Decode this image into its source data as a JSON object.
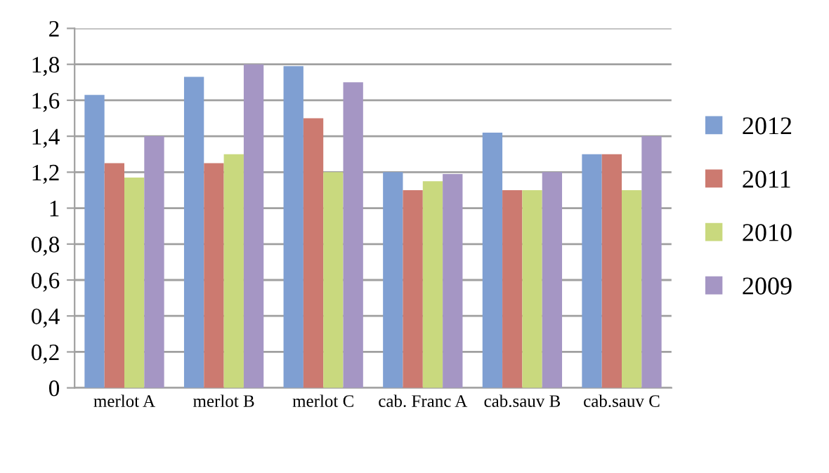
{
  "chart_data": {
    "type": "bar",
    "categories": [
      "merlot A",
      "merlot B",
      "merlot C",
      "cab. Franc A",
      "cab.sauv B",
      "cab.sauv C"
    ],
    "series": [
      {
        "name": "2012",
        "color": "#7f9fd2",
        "values": [
          1.63,
          1.73,
          1.79,
          1.2,
          1.42,
          1.3
        ]
      },
      {
        "name": "2011",
        "color": "#cc7a70",
        "values": [
          1.25,
          1.25,
          1.5,
          1.1,
          1.1,
          1.3
        ]
      },
      {
        "name": "2010",
        "color": "#c9d97e",
        "values": [
          1.17,
          1.3,
          1.2,
          1.15,
          1.1,
          1.1
        ]
      },
      {
        "name": "2009",
        "color": "#a596c4",
        "values": [
          1.4,
          1.8,
          1.7,
          1.19,
          1.2,
          1.4
        ]
      }
    ],
    "ylim": [
      0,
      2
    ],
    "yticks": [
      0,
      {
        "value": 0.2,
        "label": "0,2"
      },
      {
        "value": 0.4,
        "label": "0,4"
      },
      {
        "value": 0.6,
        "label": "0,6"
      },
      {
        "value": 0.8,
        "label": "0,8"
      },
      1,
      {
        "value": 1.2,
        "label": "1,2"
      },
      {
        "value": 1.4,
        "label": "1,4"
      },
      {
        "value": 1.6,
        "label": "1,6"
      },
      {
        "value": 1.8,
        "label": "1,8"
      },
      2
    ],
    "grid": "y",
    "legend": "right"
  }
}
